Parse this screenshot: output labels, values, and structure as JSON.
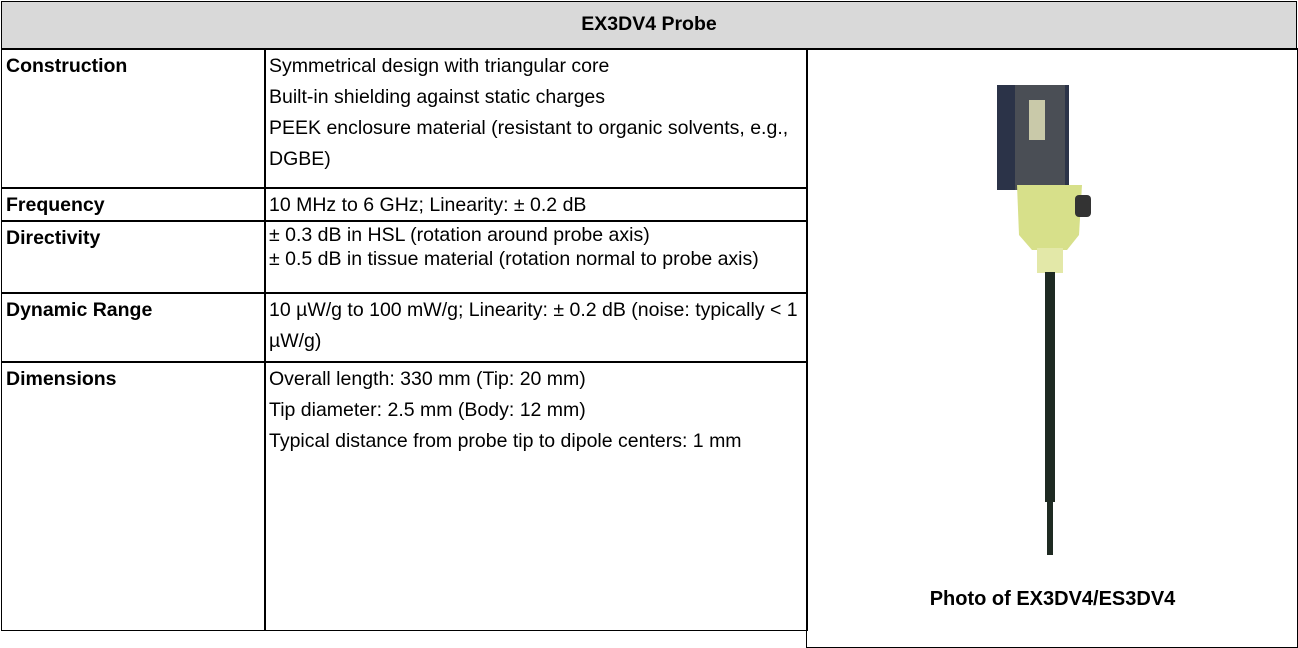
{
  "table": {
    "title": "EX3DV4 Probe",
    "rows": [
      {
        "label": "Construction",
        "lines": [
          "Symmetrical design with triangular core",
          "Built-in shielding against static charges",
          "PEEK enclosure material (resistant to organic solvents, e.g., DGBE)"
        ]
      },
      {
        "label": "Frequency",
        "lines": [
          "10 MHz to 6 GHz; Linearity: ± 0.2 dB"
        ]
      },
      {
        "label": "Directivity",
        "lines": [
          "± 0.3 dB in HSL (rotation around probe axis)",
          "± 0.5 dB in tissue material (rotation normal to probe axis)"
        ]
      },
      {
        "label": "Dynamic Range",
        "lines": [
          "10 µW/g to 100 mW/g; Linearity: ± 0.2 dB (noise: typically < 1 µW/g)"
        ]
      },
      {
        "label": "Dimensions",
        "lines": [
          "Overall length: 330 mm (Tip: 20 mm)",
          "Tip diameter: 2.5 mm (Body: 12 mm)",
          "Typical distance from probe tip to dipole centers: 1 mm"
        ]
      }
    ],
    "photo_caption": "Photo of EX3DV4/ES3DV4"
  }
}
